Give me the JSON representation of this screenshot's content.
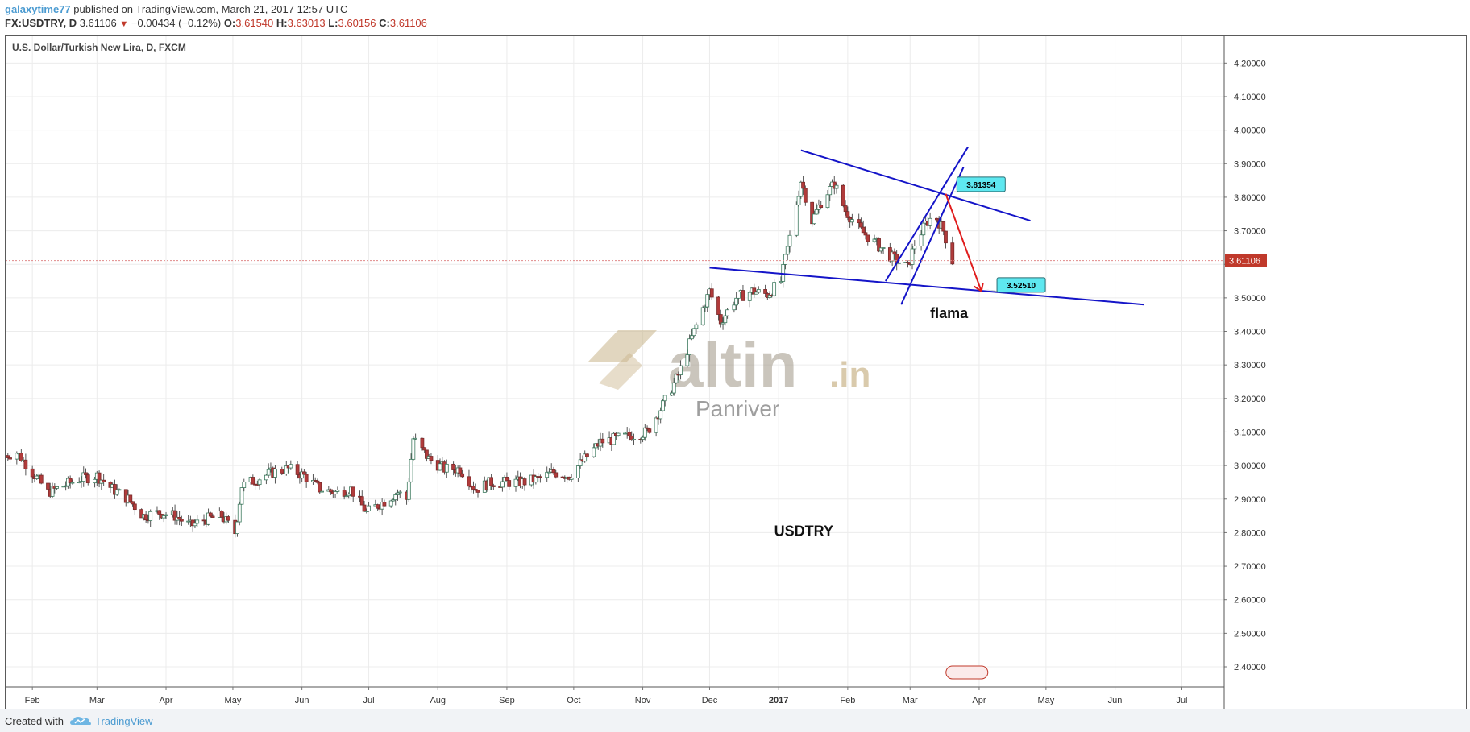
{
  "header": {
    "username": "galaxytime77",
    "published_text": "published on TradingView.com, March 21, 2017 12:57 UTC",
    "symbol": "FX:USDTRY, D",
    "last": "3.61106",
    "change": "−0.00434 (−0.12%)",
    "open_label": "O:",
    "open": "3.61540",
    "high_label": "H:",
    "high": "3.63013",
    "low_label": "L:",
    "low": "3.60156",
    "close_label": "C:",
    "close": "3.61106"
  },
  "footer": {
    "created_with": "Created with",
    "brand": "TradingView"
  },
  "chart_data": {
    "type": "candlestick",
    "title": "U.S. Dollar/Turkish New Lira, D, FXCM",
    "ylim": [
      2.34,
      4.28
    ],
    "y_ticks": [
      "4.20000",
      "4.10000",
      "4.00000",
      "3.90000",
      "3.80000",
      "3.70000",
      "3.60000",
      "3.50000",
      "3.40000",
      "3.30000",
      "3.20000",
      "3.10000",
      "3.00000",
      "2.90000",
      "2.80000",
      "2.70000",
      "2.60000",
      "2.50000",
      "2.40000"
    ],
    "x_ticks": [
      "Feb",
      "Mar",
      "Apr",
      "May",
      "Jun",
      "Jul",
      "Aug",
      "Sep",
      "Oct",
      "Nov",
      "Dec",
      "2017",
      "Feb",
      "Mar",
      "Apr",
      "May",
      "Jun",
      "Jul"
    ],
    "last_price_label": "3.61106",
    "price_path": [
      [
        "2016-01-20",
        3.03
      ],
      [
        "2016-01-25",
        3.04
      ],
      [
        "2016-02-01",
        2.98
      ],
      [
        "2016-02-08",
        2.92
      ],
      [
        "2016-02-15",
        2.94
      ],
      [
        "2016-02-22",
        2.96
      ],
      [
        "2016-03-01",
        2.97
      ],
      [
        "2016-03-08",
        2.93
      ],
      [
        "2016-03-15",
        2.9
      ],
      [
        "2016-03-22",
        2.85
      ],
      [
        "2016-03-29",
        2.86
      ],
      [
        "2016-04-05",
        2.85
      ],
      [
        "2016-04-12",
        2.82
      ],
      [
        "2016-04-19",
        2.84
      ],
      [
        "2016-04-26",
        2.85
      ],
      [
        "2016-05-02",
        2.8
      ],
      [
        "2016-05-05",
        2.94
      ],
      [
        "2016-05-12",
        2.96
      ],
      [
        "2016-05-19",
        2.98
      ],
      [
        "2016-05-26",
        2.99
      ],
      [
        "2016-06-02",
        2.97
      ],
      [
        "2016-06-09",
        2.93
      ],
      [
        "2016-06-16",
        2.92
      ],
      [
        "2016-06-23",
        2.93
      ],
      [
        "2016-06-30",
        2.86
      ],
      [
        "2016-07-07",
        2.89
      ],
      [
        "2016-07-14",
        2.92
      ],
      [
        "2016-07-18",
        2.9
      ],
      [
        "2016-07-21",
        3.08
      ],
      [
        "2016-07-28",
        3.02
      ],
      [
        "2016-08-04",
        2.99
      ],
      [
        "2016-08-11",
        2.99
      ],
      [
        "2016-08-18",
        2.93
      ],
      [
        "2016-08-25",
        2.95
      ],
      [
        "2016-09-01",
        2.95
      ],
      [
        "2016-09-08",
        2.95
      ],
      [
        "2016-09-15",
        2.96
      ],
      [
        "2016-09-22",
        2.98
      ],
      [
        "2016-09-29",
        2.97
      ],
      [
        "2016-10-06",
        3.02
      ],
      [
        "2016-10-13",
        3.07
      ],
      [
        "2016-10-20",
        3.08
      ],
      [
        "2016-10-27",
        3.09
      ],
      [
        "2016-11-03",
        3.1
      ],
      [
        "2016-11-10",
        3.18
      ],
      [
        "2016-11-17",
        3.27
      ],
      [
        "2016-11-24",
        3.4
      ],
      [
        "2016-12-01",
        3.52
      ],
      [
        "2016-12-06",
        3.43
      ],
      [
        "2016-12-13",
        3.5
      ],
      [
        "2016-12-20",
        3.52
      ],
      [
        "2016-12-27",
        3.51
      ],
      [
        "2017-01-02",
        3.55
      ],
      [
        "2017-01-06",
        3.68
      ],
      [
        "2017-01-11",
        3.85
      ],
      [
        "2017-01-16",
        3.73
      ],
      [
        "2017-01-21",
        3.8
      ],
      [
        "2017-01-26",
        3.84
      ],
      [
        "2017-01-31",
        3.76
      ],
      [
        "2017-02-07",
        3.7
      ],
      [
        "2017-02-14",
        3.66
      ],
      [
        "2017-02-21",
        3.62
      ],
      [
        "2017-02-28",
        3.59
      ],
      [
        "2017-03-03",
        3.66
      ],
      [
        "2017-03-08",
        3.72
      ],
      [
        "2017-03-12",
        3.75
      ],
      [
        "2017-03-16",
        3.7
      ],
      [
        "2017-03-20",
        3.61
      ]
    ],
    "annotations": {
      "label_upper": "3.81354",
      "label_lower": "3.52510",
      "text_flama": "flama",
      "text_usdtry": "USDTRY",
      "watermark_main": "altin",
      "watermark_suffix": ".in",
      "watermark_sub": "Panriver"
    },
    "colors": {
      "up": "#3d9970",
      "down": "#b13b3b",
      "trendline": "#1414c8",
      "arrow": "#e01c1c",
      "label_bg": "#5ee8f0",
      "watermark": "#c9b48a"
    },
    "grid": true
  }
}
